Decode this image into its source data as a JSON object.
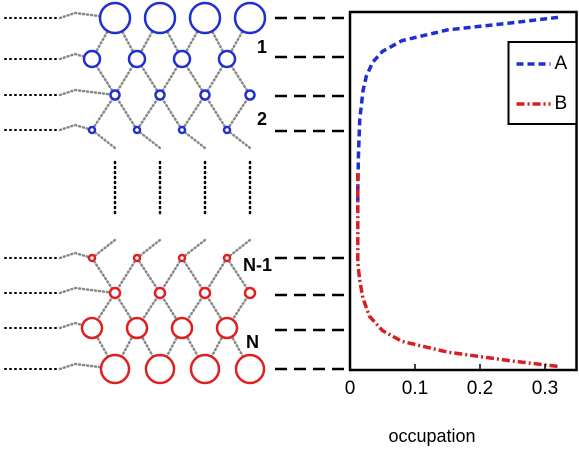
{
  "diagram": {
    "labels": [
      "1",
      "2",
      "N-1",
      "N"
    ]
  },
  "chart_data": {
    "type": "line",
    "xlabel": "occupation",
    "xlim": [
      0,
      0.35
    ],
    "xticks": [
      0,
      0.1,
      0.2,
      0.3
    ],
    "ylim": [
      0,
      1
    ],
    "legend": "upper right",
    "series": [
      {
        "name": "A",
        "color": "#1f2fd0",
        "dash": "dashed",
        "x": [
          0.32,
          0.25,
          0.15,
          0.08,
          0.05,
          0.035,
          0.025,
          0.02,
          0.015,
          0.013,
          0.012,
          0.012
        ],
        "y": [
          0.985,
          0.97,
          0.95,
          0.92,
          0.89,
          0.86,
          0.82,
          0.78,
          0.7,
          0.6,
          0.5,
          0.45
        ]
      },
      {
        "name": "B",
        "color": "#d42020",
        "dash": "dashdot",
        "x": [
          0.012,
          0.012,
          0.015,
          0.02,
          0.03,
          0.05,
          0.08,
          0.15,
          0.25,
          0.32
        ],
        "y": [
          0.55,
          0.3,
          0.25,
          0.2,
          0.15,
          0.11,
          0.08,
          0.05,
          0.025,
          0.01
        ]
      }
    ]
  }
}
